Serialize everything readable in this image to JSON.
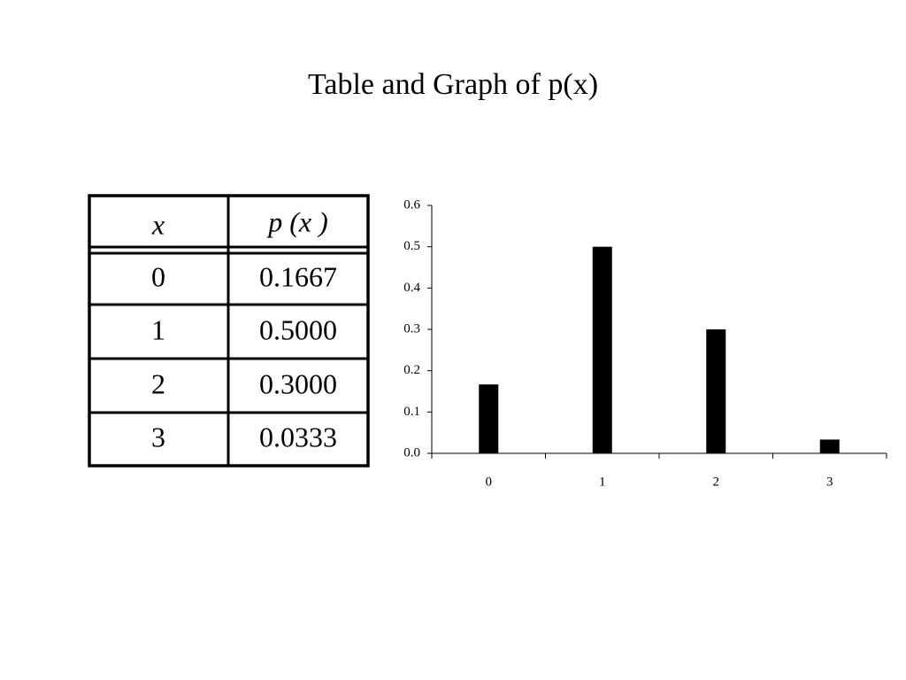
{
  "title": "Table and Graph of p(x)",
  "table": {
    "header": [
      "x",
      "p (x )"
    ],
    "rows": [
      [
        "0",
        "0.1667"
      ],
      [
        "1",
        "0.5000"
      ],
      [
        "2",
        "0.3000"
      ],
      [
        "3",
        "0.0333"
      ]
    ]
  },
  "chart_data": {
    "type": "bar",
    "categories": [
      "0",
      "1",
      "2",
      "3"
    ],
    "values": [
      0.1667,
      0.5,
      0.3,
      0.0333
    ],
    "color": "#000000",
    "ylim": [
      0,
      0.6
    ],
    "yticks": [
      {
        "value": 0,
        "label": "0.0"
      },
      0.1,
      0.2,
      0.3,
      0.4,
      0.5,
      0.6
    ],
    "grid": false
  }
}
